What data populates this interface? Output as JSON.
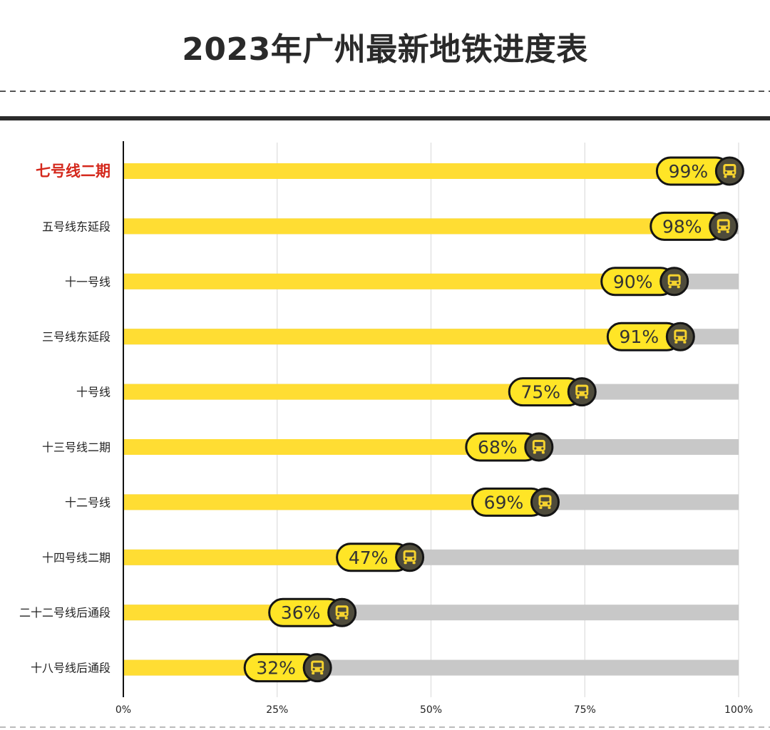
{
  "colors": {
    "bar": "#FFDD33",
    "track": "#C8C8C8",
    "badge_fill": "#FFE526",
    "badge_border": "#151515",
    "badge_text": "#333333",
    "icon_circle": "#4E4B3B",
    "icon_glyph": "#F5D22E",
    "highlight_label": "#D4281C",
    "label": "#222222",
    "grid": "#DDDDDD",
    "axis": "#111111"
  },
  "chart_data": {
    "type": "bar",
    "orientation": "horizontal",
    "title": "2023年广州最新地铁进度表",
    "categories": [
      "七号线二期",
      "五号线东延段",
      "十一号线",
      "三号线东延段",
      "十号线",
      "十三号线二期",
      "十二号线",
      "十四号线二期",
      "二十二号线后通段",
      "十八号线后通段"
    ],
    "values": [
      99,
      98,
      90,
      91,
      75,
      68,
      69,
      47,
      36,
      32
    ],
    "data_labels": [
      "99%",
      "98%",
      "90%",
      "91%",
      "75%",
      "68%",
      "69%",
      "47%",
      "36%",
      "32%"
    ],
    "highlight_index": 0,
    "xlim": [
      0,
      100
    ],
    "xticks": [
      0,
      25,
      50,
      75,
      100
    ],
    "xtick_labels": [
      "0%",
      "25%",
      "50%",
      "75%",
      "100%"
    ],
    "grid": true,
    "marker_icon": "train-icon"
  }
}
